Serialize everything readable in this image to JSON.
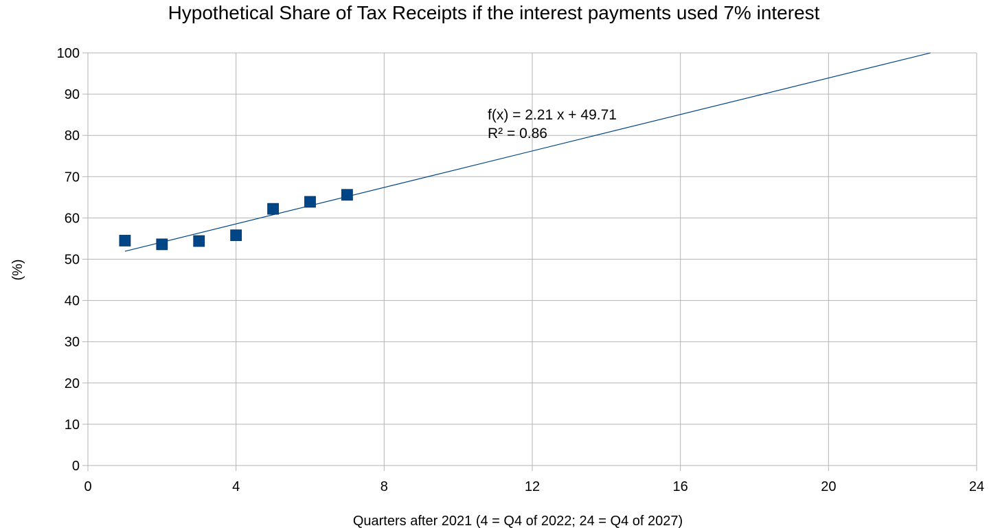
{
  "chart_data": {
    "type": "scatter",
    "title": "Hypothetical Share of Tax Receipts if the interest payments used 7% interest",
    "xlabel": "Quarters after 2021 (4 = Q4 of 2022; 24 = Q4 of 2027)",
    "ylabel": "(%)",
    "xlim": [
      0,
      24
    ],
    "ylim": [
      0,
      100
    ],
    "x_ticks": [
      0,
      4,
      8,
      12,
      16,
      20,
      24
    ],
    "y_ticks": [
      0,
      10,
      20,
      30,
      40,
      50,
      60,
      70,
      80,
      90,
      100
    ],
    "grid": true,
    "series": [
      {
        "color": "#004586",
        "marker": "square",
        "x": [
          1,
          2,
          3,
          4,
          5,
          6,
          7
        ],
        "y": [
          54.5,
          53.6,
          54.4,
          55.8,
          62.2,
          63.9,
          65.6
        ]
      }
    ],
    "trendline": {
      "type": "linear",
      "slope": 2.21,
      "intercept": 49.71,
      "x_start": 1,
      "x_end": 22.75,
      "color": "#004586",
      "equation": "f(x) = 2.21 x + 49.71",
      "r_squared": "R² = 0.86"
    }
  }
}
